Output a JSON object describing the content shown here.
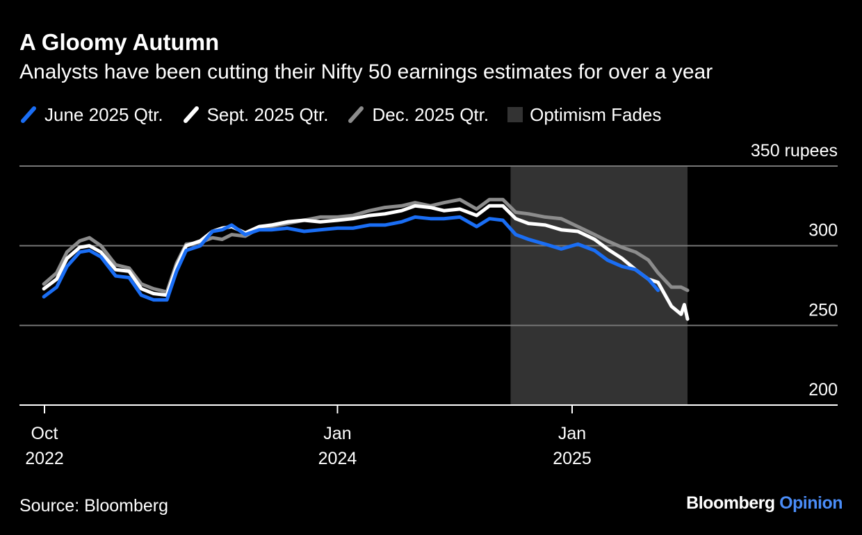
{
  "title": "A Gloomy Autumn",
  "subtitle": "Analysts have been cutting their Nifty 50 earnings estimates for over a year",
  "source": "Source: Bloomberg",
  "brand": {
    "name": "Bloomberg",
    "section": "Opinion"
  },
  "legend": [
    {
      "label": "June 2025 Qtr.",
      "color": "#1a6ef5",
      "kind": "line"
    },
    {
      "label": "Sept. 2025 Qtr.",
      "color": "#ffffff",
      "kind": "line"
    },
    {
      "label": "Dec. 2025 Qtr.",
      "color": "#8c8c8c",
      "kind": "line"
    },
    {
      "label": "Optimism Fades",
      "color": "#333333",
      "kind": "box"
    }
  ],
  "chart_data": {
    "type": "line",
    "title": "A Gloomy Autumn",
    "subtitle": "Analysts have been cutting their Nifty 50 earnings estimates for over a year",
    "ylabel": "rupees",
    "unit": "rupees",
    "ylim": [
      200,
      350
    ],
    "xlim": [
      "2022-09-01",
      "2025-07-01"
    ],
    "y_ticks": [
      {
        "value": 350,
        "label": "350 rupees"
      },
      {
        "value": 300,
        "label": "300"
      },
      {
        "value": 250,
        "label": "250"
      },
      {
        "value": 200,
        "label": "200"
      }
    ],
    "x_ticks": [
      {
        "date": "2022-10-01",
        "line1": "Oct",
        "line2": "2022"
      },
      {
        "date": "2024-01-01",
        "line1": "Jan",
        "line2": "2024"
      },
      {
        "date": "2025-01-01",
        "line1": "Jan",
        "line2": "2025"
      }
    ],
    "grid": true,
    "legend_position": "top-left",
    "shaded_region": {
      "label": "Optimism Fades",
      "start": "2024-09-27",
      "end": "2025-06-30"
    },
    "series": [
      {
        "name": "June 2025 Qtr.",
        "color": "#1a6ef5",
        "x": [
          "2022-09-30",
          "2022-10-20",
          "2022-11-05",
          "2022-11-25",
          "2022-12-10",
          "2022-12-28",
          "2023-01-20",
          "2023-02-10",
          "2023-03-01",
          "2023-03-20",
          "2023-04-10",
          "2023-04-25",
          "2023-05-10",
          "2023-06-01",
          "2023-06-20",
          "2023-07-05",
          "2023-07-20",
          "2023-08-10",
          "2023-09-01",
          "2023-09-20",
          "2023-10-15",
          "2023-11-10",
          "2023-12-05",
          "2024-01-01",
          "2024-01-25",
          "2024-02-20",
          "2024-03-15",
          "2024-04-10",
          "2024-05-01",
          "2024-05-25",
          "2024-06-15",
          "2024-07-10",
          "2024-08-05",
          "2024-08-25",
          "2024-09-15",
          "2024-10-05",
          "2024-10-25",
          "2024-11-20",
          "2024-12-15",
          "2025-01-10",
          "2025-02-05",
          "2025-02-25",
          "2025-03-20",
          "2025-04-10",
          "2025-04-30",
          "2025-05-15"
        ],
        "values": [
          268,
          274,
          287,
          296,
          297,
          293,
          281,
          280,
          269,
          266,
          266,
          284,
          297,
          300,
          309,
          310,
          313,
          307,
          310,
          310,
          311,
          309,
          310,
          311,
          311,
          313,
          313,
          315,
          318,
          317,
          317,
          318,
          312,
          317,
          316,
          307,
          304,
          301,
          298,
          301,
          297,
          291,
          287,
          285,
          279,
          272
        ]
      },
      {
        "name": "Sept. 2025 Qtr.",
        "color": "#ffffff",
        "x": [
          "2022-09-30",
          "2022-10-20",
          "2022-11-05",
          "2022-11-25",
          "2022-12-10",
          "2022-12-28",
          "2023-01-20",
          "2023-02-10",
          "2023-03-01",
          "2023-03-20",
          "2023-04-10",
          "2023-04-25",
          "2023-05-10",
          "2023-06-01",
          "2023-06-20",
          "2023-07-05",
          "2023-07-20",
          "2023-08-10",
          "2023-09-01",
          "2023-09-20",
          "2023-10-15",
          "2023-11-10",
          "2023-12-05",
          "2024-01-01",
          "2024-01-25",
          "2024-02-20",
          "2024-03-15",
          "2024-04-10",
          "2024-05-01",
          "2024-05-25",
          "2024-06-15",
          "2024-07-10",
          "2024-08-05",
          "2024-08-25",
          "2024-09-15",
          "2024-10-05",
          "2024-10-25",
          "2024-11-20",
          "2024-12-15",
          "2025-01-10",
          "2025-02-05",
          "2025-02-25",
          "2025-03-20",
          "2025-04-10",
          "2025-04-30",
          "2025-05-15",
          "2025-06-05",
          "2025-06-20",
          "2025-06-25",
          "2025-06-30"
        ],
        "values": [
          273,
          279,
          292,
          299,
          300,
          296,
          285,
          284,
          273,
          270,
          269,
          287,
          300,
          303,
          309,
          311,
          312,
          308,
          312,
          313,
          315,
          316,
          315,
          316,
          317,
          319,
          320,
          322,
          325,
          324,
          322,
          323,
          319,
          325,
          325,
          317,
          314,
          313,
          310,
          309,
          304,
          298,
          292,
          285,
          279,
          277,
          262,
          257,
          263,
          254
        ]
      },
      {
        "name": "Dec. 2025 Qtr.",
        "color": "#8c8c8c",
        "x": [
          "2022-09-30",
          "2022-10-20",
          "2022-11-05",
          "2022-11-25",
          "2022-12-10",
          "2022-12-28",
          "2023-01-20",
          "2023-02-10",
          "2023-03-01",
          "2023-03-20",
          "2023-04-10",
          "2023-04-25",
          "2023-05-10",
          "2023-06-01",
          "2023-06-20",
          "2023-07-05",
          "2023-07-20",
          "2023-08-10",
          "2023-09-01",
          "2023-09-20",
          "2023-10-15",
          "2023-11-10",
          "2023-12-05",
          "2024-01-01",
          "2024-01-25",
          "2024-02-20",
          "2024-03-15",
          "2024-04-10",
          "2024-05-01",
          "2024-05-25",
          "2024-06-15",
          "2024-07-10",
          "2024-08-05",
          "2024-08-25",
          "2024-09-15",
          "2024-10-05",
          "2024-10-25",
          "2024-11-20",
          "2024-12-15",
          "2025-01-10",
          "2025-02-05",
          "2025-02-25",
          "2025-03-20",
          "2025-04-10",
          "2025-04-30",
          "2025-05-15",
          "2025-06-05",
          "2025-06-20",
          "2025-06-30"
        ],
        "values": [
          276,
          283,
          296,
          303,
          305,
          300,
          288,
          286,
          276,
          273,
          271,
          289,
          301,
          302,
          305,
          304,
          307,
          306,
          311,
          312,
          314,
          316,
          318,
          318,
          319,
          322,
          324,
          325,
          327,
          325,
          327,
          329,
          323,
          329,
          329,
          321,
          320,
          318,
          317,
          312,
          307,
          303,
          299,
          296,
          291,
          283,
          274,
          274,
          272
        ]
      }
    ]
  }
}
